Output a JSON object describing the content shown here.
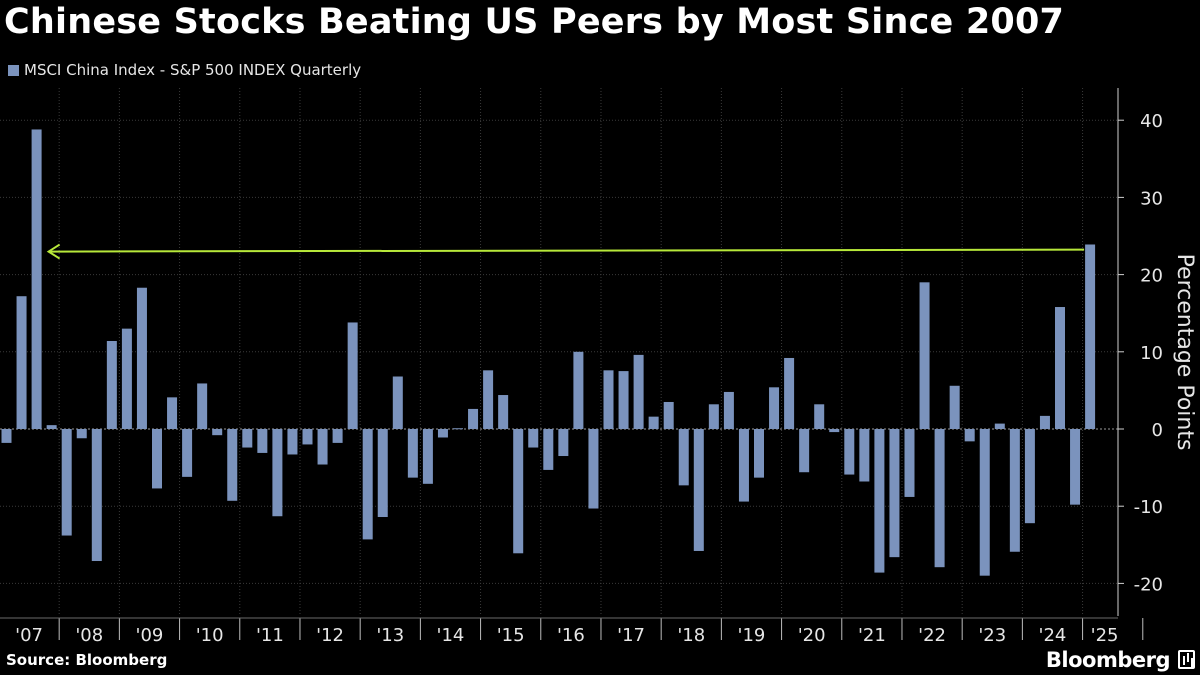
{
  "header": {
    "title": "Chinese Stocks Beating US Peers by Most Since 2007"
  },
  "footer": {
    "source": "Source: Bloomberg",
    "brand": "Bloomberg"
  },
  "chart_data": {
    "type": "bar",
    "title": "Chinese Stocks Beating US Peers by Most Since 2007",
    "legend": "MSCI China Index - S&P 500 INDEX Quarterly",
    "ylabel": "Percentage Points",
    "xlabel": "",
    "ylim": [
      -23,
      44
    ],
    "yticks": [
      -20,
      -10,
      0,
      10,
      20,
      30,
      40
    ],
    "x_labels": [
      "'07",
      "'08",
      "'09",
      "'10",
      "'11",
      "'12",
      "'13",
      "'14",
      "'15",
      "'16",
      "'17",
      "'18",
      "'19",
      "'20",
      "'21",
      "'22",
      "'23",
      "'24",
      "'25"
    ],
    "colors": {
      "bar": "#7b93bd",
      "arrow": "#b7e83a",
      "grid": "#3a3a3a"
    },
    "annotation": {
      "type": "arrow",
      "from_value": 23.5,
      "to_quarter": "2007 Q3",
      "note": "current level vs 2007"
    },
    "categories": [
      "2007 Q1",
      "2007 Q2",
      "2007 Q3",
      "2007 Q4",
      "2008 Q1",
      "2008 Q2",
      "2008 Q3",
      "2008 Q4",
      "2009 Q1",
      "2009 Q2",
      "2009 Q3",
      "2009 Q4",
      "2010 Q1",
      "2010 Q2",
      "2010 Q3",
      "2010 Q4",
      "2011 Q1",
      "2011 Q2",
      "2011 Q3",
      "2011 Q4",
      "2012 Q1",
      "2012 Q2",
      "2012 Q3",
      "2012 Q4",
      "2013 Q1",
      "2013 Q2",
      "2013 Q3",
      "2013 Q4",
      "2014 Q1",
      "2014 Q2",
      "2014 Q3",
      "2014 Q4",
      "2015 Q1",
      "2015 Q2",
      "2015 Q3",
      "2015 Q4",
      "2016 Q1",
      "2016 Q2",
      "2016 Q3",
      "2016 Q4",
      "2017 Q1",
      "2017 Q2",
      "2017 Q3",
      "2017 Q4",
      "2018 Q1",
      "2018 Q2",
      "2018 Q3",
      "2018 Q4",
      "2019 Q1",
      "2019 Q2",
      "2019 Q3",
      "2019 Q4",
      "2020 Q1",
      "2020 Q2",
      "2020 Q3",
      "2020 Q4",
      "2021 Q1",
      "2021 Q2",
      "2021 Q3",
      "2021 Q4",
      "2022 Q1",
      "2022 Q2",
      "2022 Q3",
      "2022 Q4",
      "2023 Q1",
      "2023 Q2",
      "2023 Q3",
      "2023 Q4",
      "2024 Q1",
      "2024 Q2",
      "2024 Q3",
      "2024 Q4",
      "2025 Q1"
    ],
    "values": [
      -1.8,
      17.2,
      38.8,
      0.5,
      -13.8,
      -1.2,
      -17.1,
      11.4,
      13.0,
      18.3,
      -7.7,
      4.1,
      -6.2,
      5.9,
      -0.8,
      -9.3,
      -2.4,
      -3.1,
      -11.3,
      -3.3,
      -2.0,
      -4.6,
      -1.8,
      13.8,
      -14.3,
      -11.4,
      6.8,
      -6.3,
      -7.1,
      -1.1,
      0.1,
      2.6,
      7.6,
      4.4,
      -16.1,
      -2.4,
      -5.3,
      -3.5,
      10.0,
      -10.3,
      7.6,
      7.5,
      9.6,
      1.6,
      3.5,
      -7.3,
      -15.8,
      3.2,
      4.8,
      -9.4,
      -6.3,
      5.4,
      9.2,
      -5.6,
      3.2,
      -0.4,
      -5.9,
      -6.8,
      -18.6,
      -16.6,
      -8.8,
      19.0,
      -17.9,
      5.6,
      -1.6,
      -19.0,
      0.7,
      -15.9,
      -12.2,
      1.7,
      15.8,
      -9.8,
      23.9
    ]
  }
}
